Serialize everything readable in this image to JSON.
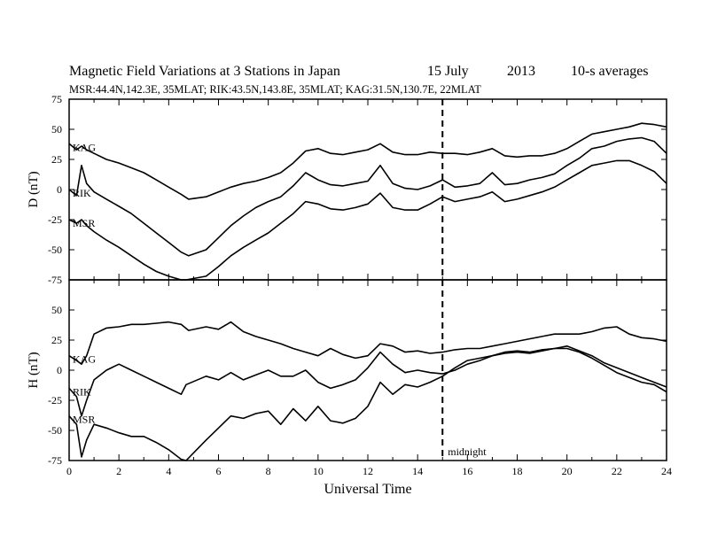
{
  "header": {
    "title": "Magnetic Field Variations at 3 Stations in Japan",
    "day": "15 July",
    "year": "2013",
    "averaging": "10-s averages",
    "subtitle": "MSR:44.4N,142.3E, 35MLAT;  RIK:43.5N,143.8E, 35MLAT;  KAG:31.5N,130.7E, 22MLAT"
  },
  "colors": {
    "line": "#000000",
    "background": "#ffffff"
  },
  "chart_data": [
    {
      "type": "line",
      "panel": "top",
      "ylabel": "D (nT)",
      "ylim": [
        -75,
        75
      ],
      "yticks": [
        75,
        50,
        25,
        0,
        -25,
        -50,
        -75
      ],
      "xlim": [
        0,
        24
      ],
      "series": [
        {
          "name": "KAG",
          "x": [
            0,
            0.3,
            0.5,
            0.7,
            1,
            1.5,
            2,
            2.5,
            3,
            3.5,
            4,
            4.5,
            4.8,
            5.5,
            6,
            6.5,
            7,
            7.5,
            8,
            8.5,
            9,
            9.5,
            10,
            10.5,
            11,
            11.5,
            12,
            12.5,
            13,
            13.5,
            14,
            14.5,
            15,
            15.5,
            16,
            16.5,
            17,
            17.5,
            18,
            18.5,
            19,
            19.5,
            20,
            20.5,
            21,
            21.5,
            22,
            22.5,
            23,
            23.5,
            24
          ],
          "y": [
            38,
            33,
            36,
            33,
            30,
            25,
            22,
            18,
            14,
            8,
            2,
            -4,
            -8,
            -6,
            -2,
            2,
            5,
            7,
            10,
            14,
            22,
            32,
            34,
            30,
            29,
            31,
            33,
            38,
            31,
            29,
            29,
            31,
            30,
            30,
            29,
            31,
            34,
            28,
            27,
            28,
            28,
            30,
            34,
            40,
            46,
            48,
            50,
            52,
            55,
            54,
            52
          ]
        },
        {
          "name": "RIK",
          "x": [
            0,
            0.3,
            0.5,
            0.7,
            1,
            1.5,
            2,
            2.5,
            3,
            3.5,
            4,
            4.5,
            4.8,
            5.5,
            6,
            6.5,
            7,
            7.5,
            8,
            8.5,
            9,
            9.5,
            10,
            10.5,
            11,
            11.5,
            12,
            12.5,
            13,
            13.5,
            14,
            14.5,
            15,
            15.5,
            16,
            16.5,
            17,
            17.5,
            18,
            18.5,
            19,
            19.5,
            20,
            20.5,
            21,
            21.5,
            22,
            22.5,
            23,
            23.5,
            24
          ],
          "y": [
            0,
            -5,
            20,
            5,
            -2,
            -8,
            -14,
            -20,
            -28,
            -36,
            -44,
            -52,
            -55,
            -50,
            -40,
            -30,
            -22,
            -15,
            -10,
            -6,
            3,
            14,
            8,
            4,
            3,
            5,
            7,
            20,
            5,
            1,
            0,
            3,
            8,
            2,
            3,
            5,
            14,
            4,
            5,
            8,
            10,
            13,
            20,
            26,
            34,
            36,
            40,
            42,
            43,
            40,
            30
          ]
        },
        {
          "name": "MSR",
          "x": [
            0,
            0.3,
            0.5,
            0.7,
            1,
            1.5,
            2,
            2.5,
            3,
            3.5,
            4,
            4.5,
            4.7,
            5.5,
            6,
            6.5,
            7,
            7.5,
            8,
            8.5,
            9,
            9.5,
            10,
            10.5,
            11,
            11.5,
            12,
            12.5,
            13,
            13.5,
            14,
            14.5,
            15,
            15.5,
            16,
            16.5,
            17,
            17.5,
            18,
            18.5,
            19,
            19.5,
            20,
            20.5,
            21,
            21.5,
            22,
            22.5,
            23,
            23.5,
            24
          ],
          "y": [
            -25,
            -28,
            -25,
            -30,
            -35,
            -42,
            -48,
            -55,
            -62,
            -68,
            -72,
            -76,
            -76,
            -72,
            -64,
            -55,
            -48,
            -42,
            -36,
            -28,
            -20,
            -10,
            -12,
            -16,
            -17,
            -15,
            -12,
            -3,
            -15,
            -17,
            -17,
            -12,
            -6,
            -10,
            -8,
            -6,
            -2,
            -10,
            -8,
            -5,
            -2,
            2,
            8,
            14,
            20,
            22,
            24,
            24,
            20,
            15,
            5
          ]
        }
      ]
    },
    {
      "type": "line",
      "panel": "bottom",
      "ylabel": "H (nT)",
      "ylim": [
        -75,
        75
      ],
      "yticks": [
        50,
        25,
        0,
        -25,
        -50,
        -75
      ],
      "xlim": [
        0,
        24
      ],
      "xticks": [
        0,
        2,
        4,
        6,
        8,
        10,
        12,
        14,
        16,
        18,
        20,
        22,
        24
      ],
      "xlabel": "Universal Time",
      "annotation": {
        "x": 15,
        "label": "midnight",
        "style": "dashed"
      },
      "series": [
        {
          "name": "KAG",
          "x": [
            0,
            0.3,
            0.5,
            0.7,
            1,
            1.5,
            2,
            2.5,
            3,
            3.5,
            4,
            4.5,
            4.8,
            5.5,
            6,
            6.5,
            7,
            7.5,
            8,
            8.5,
            9,
            9.5,
            10,
            10.5,
            11,
            11.5,
            12,
            12.5,
            13,
            13.5,
            14,
            14.5,
            15,
            15.5,
            16,
            16.5,
            17,
            17.5,
            18,
            18.5,
            19,
            19.5,
            20,
            20.5,
            21,
            21.5,
            22,
            22.5,
            23,
            23.5,
            24
          ],
          "y": [
            12,
            8,
            5,
            12,
            30,
            35,
            36,
            38,
            38,
            39,
            40,
            38,
            33,
            36,
            34,
            40,
            32,
            28,
            25,
            22,
            18,
            15,
            12,
            18,
            13,
            10,
            12,
            22,
            20,
            15,
            16,
            14,
            15,
            17,
            18,
            18,
            20,
            22,
            24,
            26,
            28,
            30,
            30,
            30,
            32,
            35,
            36,
            30,
            27,
            26,
            24
          ]
        },
        {
          "name": "RIK",
          "x": [
            0,
            0.3,
            0.5,
            0.7,
            1,
            1.5,
            2,
            2.5,
            3,
            3.5,
            4,
            4.5,
            4.7,
            5.5,
            6,
            6.5,
            7,
            7.5,
            8,
            8.5,
            9,
            9.5,
            10,
            10.5,
            11,
            11.5,
            12,
            12.5,
            13,
            13.5,
            14,
            14.5,
            15,
            15.5,
            16,
            16.5,
            17,
            17.5,
            18,
            18.5,
            19,
            19.5,
            20,
            20.5,
            21,
            21.5,
            22,
            22.5,
            23,
            23.5,
            24
          ],
          "y": [
            -15,
            -22,
            -38,
            -25,
            -8,
            0,
            5,
            0,
            -5,
            -10,
            -15,
            -20,
            -12,
            -5,
            -8,
            -2,
            -8,
            -4,
            0,
            -5,
            -5,
            0,
            -10,
            -15,
            -12,
            -8,
            2,
            15,
            5,
            -2,
            0,
            -2,
            -3,
            0,
            5,
            8,
            12,
            15,
            16,
            15,
            17,
            18,
            18,
            15,
            10,
            4,
            -2,
            -6,
            -10,
            -12,
            -18
          ]
        },
        {
          "name": "MSR",
          "x": [
            0,
            0.3,
            0.5,
            0.7,
            1,
            1.5,
            2,
            2.5,
            3,
            3.5,
            4,
            4.5,
            4.7,
            5.5,
            6,
            6.5,
            7,
            7.5,
            8,
            8.5,
            9,
            9.5,
            10,
            10.5,
            11,
            11.5,
            12,
            12.5,
            13,
            13.5,
            14,
            14.5,
            15,
            15.5,
            16,
            16.5,
            17,
            17.5,
            18,
            18.5,
            19,
            19.5,
            20,
            20.5,
            21,
            21.5,
            22,
            22.5,
            23,
            23.5,
            24
          ],
          "y": [
            -38,
            -45,
            -72,
            -58,
            -45,
            -48,
            -52,
            -55,
            -55,
            -60,
            -66,
            -74,
            -78,
            -58,
            -48,
            -38,
            -40,
            -36,
            -34,
            -45,
            -32,
            -42,
            -30,
            -42,
            -44,
            -40,
            -30,
            -10,
            -20,
            -12,
            -14,
            -10,
            -5,
            2,
            8,
            10,
            12,
            14,
            15,
            14,
            16,
            18,
            20,
            16,
            12,
            6,
            2,
            -2,
            -6,
            -10,
            -14
          ]
        }
      ]
    }
  ]
}
